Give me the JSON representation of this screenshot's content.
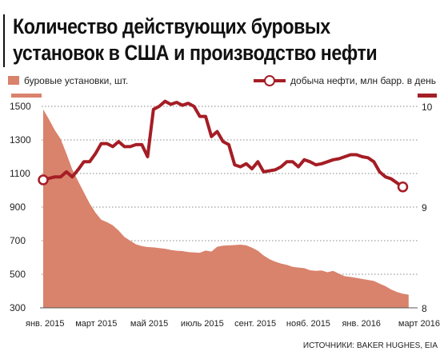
{
  "title_line1": "Количество действующих буровых",
  "title_line2": "установок в США и производство нефти",
  "legend_rigs": "буровые установки, шт.",
  "legend_oil": "добыча нефти, млн барр. в день",
  "source": "ИСТОЧНИКИ: BAKER HUGHES, EIA",
  "colors": {
    "rigs_area": "#d9826c",
    "oil_line": "#a51d25",
    "grid": "#888888"
  },
  "chart_data": {
    "type": "area+line",
    "x_labels": [
      "янв. 2015",
      "март 2015",
      "май 2015",
      "июль 2015",
      "сент. 2015",
      "нояб. 2015",
      "янв. 2016",
      "март 2016"
    ],
    "x_range": [
      0,
      64
    ],
    "left_axis": {
      "ticks": [
        300,
        500,
        700,
        900,
        1100,
        1300,
        1500
      ],
      "ylim": [
        300,
        1500
      ]
    },
    "right_axis": {
      "ticks": [
        8,
        9,
        10
      ],
      "ylim": [
        8,
        10
      ]
    },
    "series": [
      {
        "name": "буровые установки, шт.",
        "type": "area",
        "axis": "left",
        "x": [
          0,
          1,
          2,
          3,
          4,
          5,
          6,
          7,
          8,
          9,
          10,
          11,
          12,
          13,
          14,
          15,
          16,
          17,
          18,
          19,
          20,
          21,
          22,
          23,
          24,
          25,
          26,
          27,
          28,
          29,
          30,
          31,
          32,
          33,
          34,
          35,
          36,
          37,
          38,
          39,
          40,
          41,
          42,
          43,
          44,
          45,
          46,
          47,
          48,
          49,
          50,
          51,
          52,
          53,
          54,
          55,
          56,
          57,
          58,
          59,
          60,
          61,
          62,
          63
        ],
        "values": [
          1482,
          1422,
          1358,
          1305,
          1219,
          1125,
          1056,
          988,
          922,
          867,
          825,
          810,
          791,
          760,
          722,
          700,
          678,
          668,
          662,
          660,
          656,
          652,
          645,
          640,
          638,
          632,
          630,
          628,
          641,
          635,
          664,
          670,
          672,
          674,
          676,
          672,
          658,
          640,
          612,
          590,
          575,
          564,
          556,
          544,
          540,
          536,
          524,
          520,
          523,
          512,
          520,
          503,
          488,
          484,
          478,
          472,
          466,
          460,
          444,
          429,
          409,
          394,
          384,
          378
        ]
      },
      {
        "name": "добыча нефти, млн барр. в день",
        "type": "line",
        "axis": "right",
        "x": [
          0,
          2,
          3,
          4,
          5,
          6,
          7,
          8,
          9,
          10,
          11,
          12,
          13,
          14,
          15,
          16,
          17,
          18,
          19,
          20,
          21,
          22,
          23,
          24,
          25,
          26,
          27,
          28,
          29,
          30,
          31,
          32,
          33,
          34,
          35,
          36,
          37,
          38,
          39,
          40,
          41,
          42,
          43,
          44,
          45,
          46,
          47,
          48,
          49,
          50,
          51,
          52,
          53,
          54,
          55,
          56,
          57,
          58,
          59,
          60,
          61,
          62
        ],
        "values": [
          9.27,
          9.3,
          9.3,
          9.35,
          9.3,
          9.37,
          9.45,
          9.45,
          9.53,
          9.63,
          9.63,
          9.6,
          9.65,
          9.6,
          9.6,
          9.62,
          9.62,
          9.5,
          9.97,
          10.0,
          10.05,
          10.02,
          10.04,
          10.01,
          10.03,
          10.0,
          9.9,
          9.9,
          9.7,
          9.75,
          9.65,
          9.62,
          9.42,
          9.4,
          9.43,
          9.38,
          9.45,
          9.35,
          9.36,
          9.37,
          9.4,
          9.45,
          9.45,
          9.4,
          9.47,
          9.45,
          9.42,
          9.43,
          9.45,
          9.47,
          9.48,
          9.5,
          9.52,
          9.52,
          9.5,
          9.49,
          9.45,
          9.35,
          9.3,
          9.28,
          9.24,
          9.2
        ]
      }
    ],
    "start_marker": {
      "series": "добыча нефти, млн барр. в день",
      "x": 0
    },
    "end_marker": {
      "series": "добыча нефти, млн барр. в день",
      "x": 62
    }
  }
}
